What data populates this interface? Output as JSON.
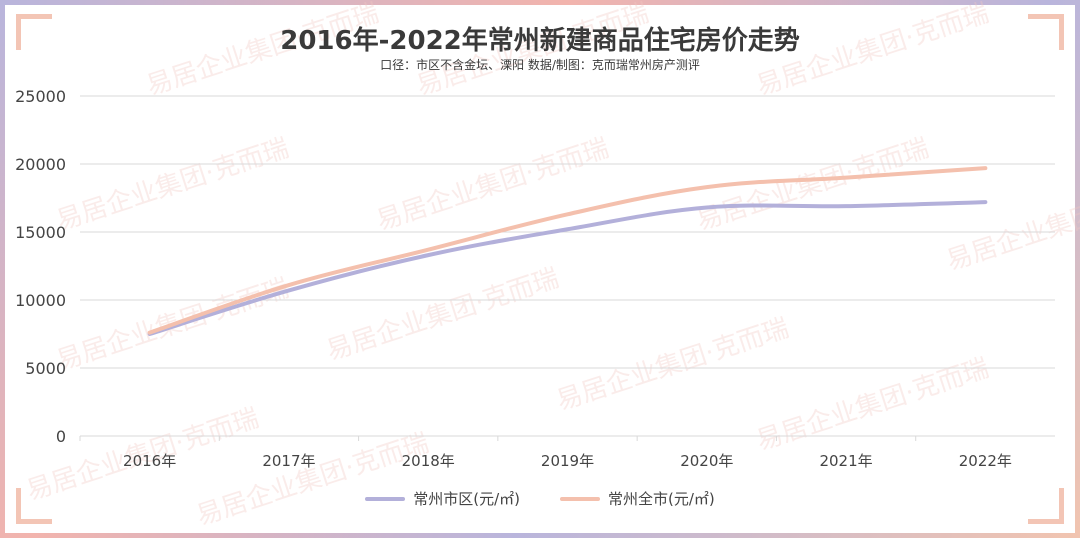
{
  "title": "2016年-2022年常州新建商品住宅房价走势",
  "subtitle": "口径：市区不含金坛、溧阳 数据/制图：克而瑞常州房产测评",
  "watermark": "易居企业集团·克而瑞",
  "colors": {
    "series1": "#b3b0da",
    "series2": "#f4c0ad",
    "grid": "#d9d9d9",
    "axis_text": "#444444"
  },
  "chart_data": {
    "type": "line",
    "title": "2016年-2022年常州新建商品住宅房价走势",
    "subtitle": "口径：市区不含金坛、溧阳 数据/制图：克而瑞常州房产测评",
    "categories": [
      "2016年",
      "2017年",
      "2018年",
      "2019年",
      "2020年",
      "2021年",
      "2022年"
    ],
    "ylim": [
      0,
      25000
    ],
    "yticks": [
      "0",
      "5000",
      "10000",
      "15000",
      "20000",
      "25000"
    ],
    "grid": true,
    "legend": "bottom",
    "series": [
      {
        "name": "常州市区(元/㎡)",
        "values": [
          7500,
          10700,
          13300,
          15200,
          16800,
          16900,
          17200
        ]
      },
      {
        "name": "常州全市(元/㎡)",
        "values": [
          7600,
          11100,
          13700,
          16300,
          18300,
          19000,
          19700
        ]
      }
    ]
  }
}
